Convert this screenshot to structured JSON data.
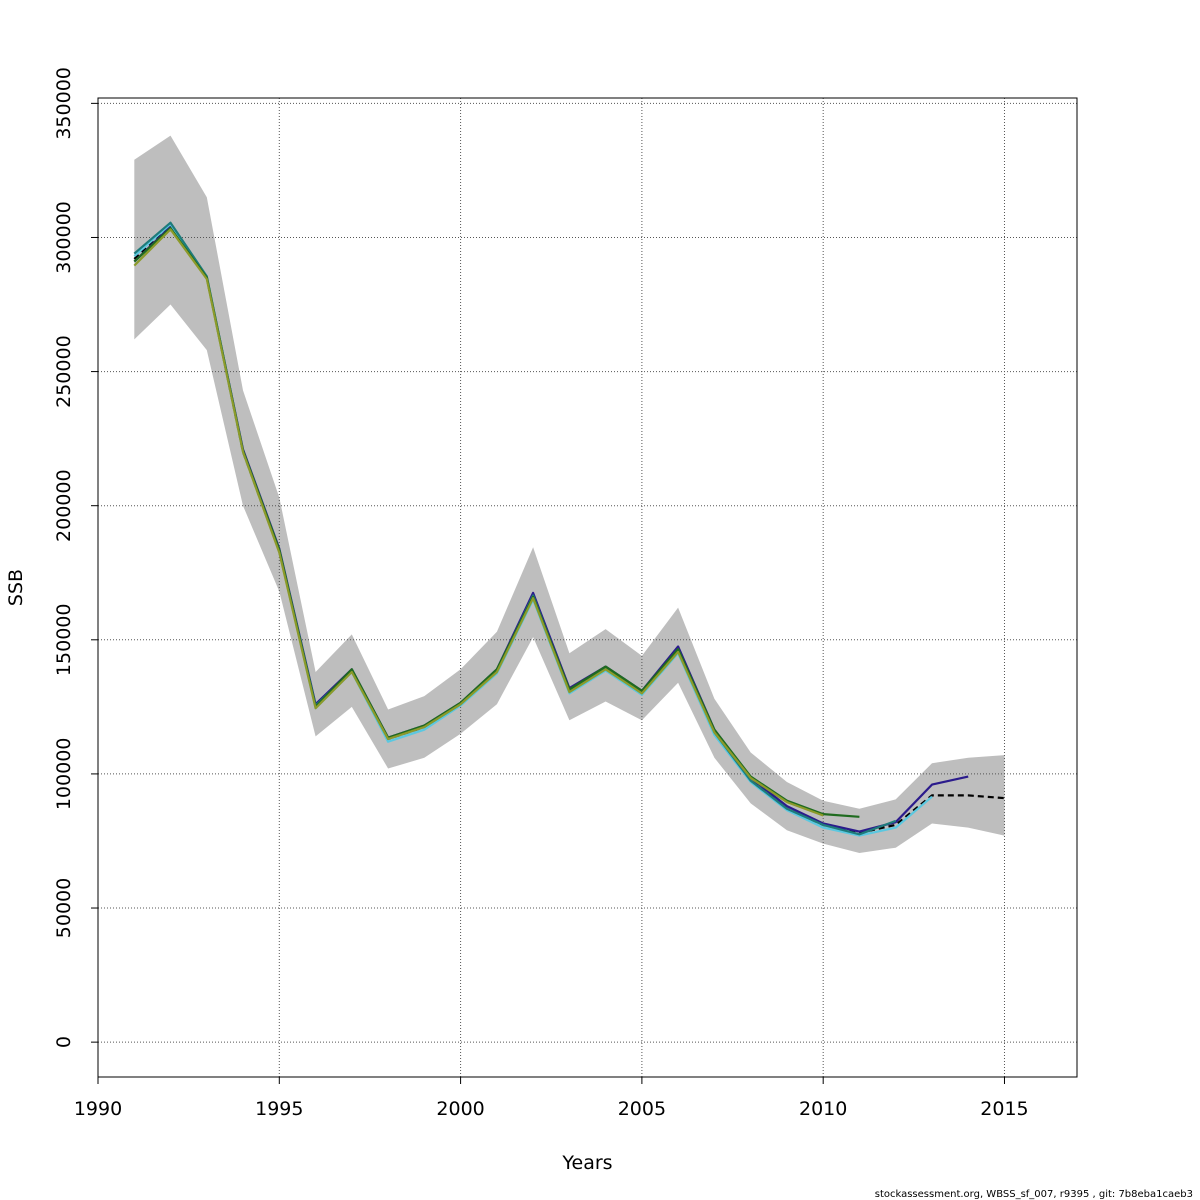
{
  "chart_data": {
    "type": "line",
    "title": "",
    "xlabel": "Years",
    "ylabel": "SSB",
    "xlim": [
      1990,
      2017
    ],
    "ylim": [
      -13000,
      352000
    ],
    "x_ticks": [
      1990,
      1995,
      2000,
      2005,
      2010,
      2015
    ],
    "y_ticks": [
      0,
      50000,
      100000,
      150000,
      200000,
      250000,
      300000,
      350000
    ],
    "grid": true,
    "legend": "none",
    "confidence_band": {
      "color": "#bebebe",
      "x": [
        1991,
        1992,
        1993,
        1994,
        1995,
        1996,
        1997,
        1998,
        1999,
        2000,
        2001,
        2002,
        2003,
        2004,
        2005,
        2006,
        2007,
        2008,
        2009,
        2010,
        2011,
        2012,
        2013,
        2014,
        2015
      ],
      "lower": [
        262000,
        275000,
        258000,
        200000,
        168000,
        114000,
        125000,
        102000,
        106000,
        115000,
        126000,
        151000,
        120000,
        127000,
        120000,
        134000,
        106000,
        89000,
        79000,
        74000,
        70500,
        72500,
        81500,
        80000,
        77000
      ],
      "upper": [
        329000,
        338000,
        315000,
        243000,
        203000,
        138000,
        152000,
        124000,
        129000,
        139000,
        153000,
        184500,
        145000,
        154000,
        144000,
        162000,
        128000,
        108000,
        97000,
        90000,
        87000,
        90500,
        104000,
        106000,
        107000
      ]
    },
    "series": [
      {
        "color": "#000000",
        "dashed": true,
        "x": [
          1991,
          1992,
          1993,
          1994,
          1995,
          1996,
          1997,
          1998,
          1999,
          2000,
          2001,
          2002,
          2003,
          2004,
          2005,
          2006,
          2007,
          2008,
          2009,
          2010,
          2011,
          2012,
          2013,
          2014,
          2015
        ],
        "values": [
          292000,
          304000,
          285000,
          220000,
          183000,
          125000,
          138500,
          113000,
          117500,
          126000,
          138500,
          166000,
          131000,
          139500,
          130500,
          146000,
          116000,
          98000,
          87000,
          81000,
          78000,
          81000,
          92000,
          92000,
          91000
        ]
      },
      {
        "color": "#2b1b8c",
        "dashed": false,
        "x": [
          1991,
          1992,
          1993,
          1994,
          1995,
          1996,
          1997,
          1998,
          1999,
          2000,
          2001,
          2002,
          2003,
          2004,
          2005,
          2006,
          2007,
          2008,
          2009,
          2010,
          2011,
          2012,
          2013,
          2014
        ],
        "values": [
          291000,
          304000,
          285000,
          221000,
          184000,
          126000,
          139000,
          113500,
          118000,
          126500,
          139000,
          167500,
          132000,
          140000,
          131000,
          147500,
          116500,
          98500,
          88000,
          81500,
          78500,
          82000,
          96000,
          99000
        ]
      },
      {
        "color": "#5bc8e0",
        "dashed": false,
        "x": [
          1991,
          1992,
          1993,
          1994,
          1995,
          1996,
          1997,
          1998,
          1999,
          2000,
          2001,
          2002,
          2003,
          2004,
          2005,
          2006,
          2007,
          2008,
          2009,
          2010,
          2011,
          2012,
          2013
        ],
        "values": [
          293000,
          305000,
          285000,
          220000,
          183000,
          124500,
          138000,
          112000,
          116500,
          125500,
          137500,
          165000,
          130000,
          138500,
          129500,
          145000,
          114500,
          97000,
          86500,
          80000,
          77000,
          80000,
          91500
        ]
      },
      {
        "color": "#1e7b7b",
        "dashed": false,
        "x": [
          1991,
          1992,
          1993,
          1994,
          1995,
          1996,
          1997,
          1998,
          1999,
          2000,
          2001,
          2002,
          2003,
          2004,
          2005,
          2006,
          2007,
          2008,
          2009,
          2010,
          2011,
          2012
        ],
        "values": [
          294000,
          305500,
          285500,
          220500,
          183500,
          125500,
          138500,
          113000,
          117500,
          126000,
          138500,
          166500,
          131000,
          139500,
          130500,
          146500,
          115500,
          97500,
          87000,
          81000,
          77500,
          82500
        ]
      },
      {
        "color": "#1f6b1f",
        "dashed": false,
        "x": [
          1991,
          1992,
          1993,
          1994,
          1995,
          1996,
          1997,
          1998,
          1999,
          2000,
          2001,
          2002,
          2003,
          2004,
          2005,
          2006,
          2007,
          2008,
          2009,
          2010,
          2011
        ],
        "values": [
          291000,
          303500,
          285000,
          220500,
          183500,
          125000,
          139000,
          113500,
          118000,
          126500,
          139000,
          166000,
          131500,
          140000,
          131000,
          146500,
          116500,
          99000,
          90000,
          85000,
          84000
        ]
      },
      {
        "color": "#8c9a2a",
        "dashed": false,
        "x": [
          1991,
          1992,
          1993,
          1994,
          1995,
          1996,
          1997,
          1998,
          1999,
          2000,
          2001,
          2002,
          2003,
          2004,
          2005,
          2006,
          2007,
          2008,
          2009,
          2010
        ],
        "values": [
          289500,
          303000,
          284500,
          220000,
          182500,
          124500,
          138000,
          113000,
          117500,
          126000,
          138000,
          165500,
          130500,
          139000,
          130000,
          145500,
          115500,
          98500,
          89500,
          84500
        ]
      }
    ]
  },
  "footer": {
    "text": "stockassessment.org, WBSS_sf_007, r9395 , git: 7b8eba1caeb3"
  }
}
